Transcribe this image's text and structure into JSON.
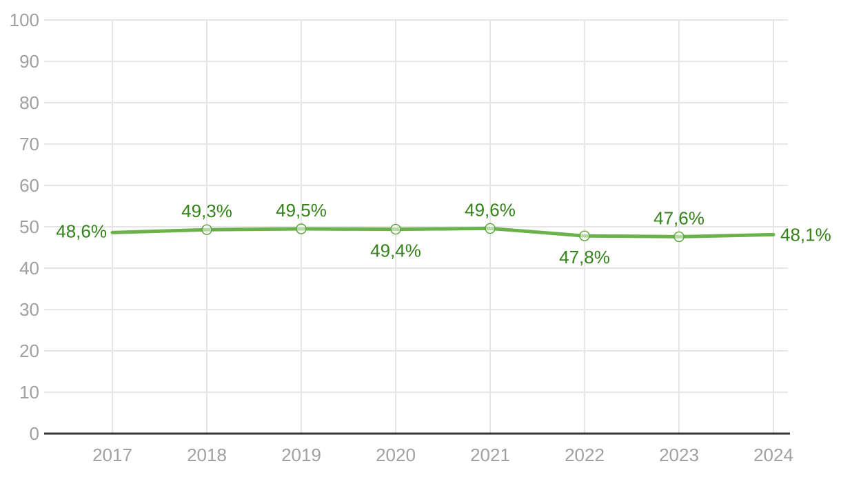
{
  "chart_data": {
    "type": "line",
    "title": "",
    "xlabel": "",
    "ylabel": "",
    "categories": [
      "2017",
      "2018",
      "2019",
      "2020",
      "2021",
      "2022",
      "2023",
      "2024"
    ],
    "values": [
      48.6,
      49.3,
      49.5,
      49.4,
      49.6,
      47.8,
      47.6,
      48.1
    ],
    "point_labels": [
      "48,6%",
      "49,3%",
      "49,5%",
      "49,4%",
      "49,6%",
      "47,8%",
      "47,6%",
      "48,1%"
    ],
    "point_label_positions": [
      "left",
      "above",
      "above",
      "below",
      "above",
      "below",
      "above",
      "right"
    ],
    "marker_point_indices": [
      1,
      2,
      3,
      4,
      5,
      6
    ],
    "marker_style": "open-circle",
    "ylim": [
      0,
      100
    ],
    "yticks": [
      0,
      10,
      20,
      30,
      40,
      50,
      60,
      70,
      80,
      90,
      100
    ],
    "ytick_labels": [
      "0",
      "10",
      "20",
      "30",
      "40",
      "50",
      "60",
      "70",
      "80",
      "90",
      "100"
    ],
    "grid": "both",
    "legend_position": "none",
    "colors": {
      "line": "#6cb24a",
      "marker_stroke": "#55a337",
      "marker_fill": "#ffffff",
      "point_label": "#35821b",
      "axis_text": "#a0a0a0",
      "gridline": "#e6e6e6",
      "axis_line": "#363636",
      "background": "#ffffff"
    }
  }
}
